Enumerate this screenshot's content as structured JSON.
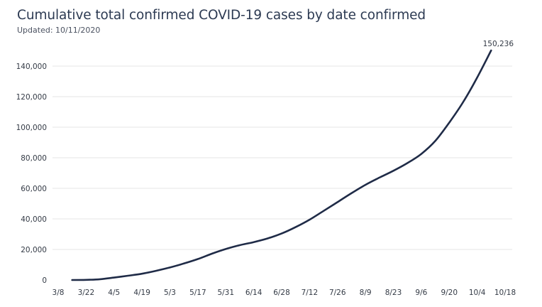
{
  "title": "Cumulative total confirmed COVID-19 cases by date confirmed",
  "subtitle": "Updated: 10/11/2020",
  "colors": {
    "line": "#1f2b47",
    "grid": "#e6e6e6",
    "text": "#333a45"
  },
  "chart_data": {
    "type": "line",
    "title": "Cumulative total confirmed COVID-19 cases by date confirmed",
    "subtitle": "Updated: 10/11/2020",
    "xlabel": "",
    "ylabel": "",
    "x_ticks": [
      {
        "label": "3/8",
        "day": 0
      },
      {
        "label": "3/22",
        "day": 14
      },
      {
        "label": "4/5",
        "day": 28
      },
      {
        "label": "4/19",
        "day": 42
      },
      {
        "label": "5/3",
        "day": 56
      },
      {
        "label": "5/17",
        "day": 70
      },
      {
        "label": "5/31",
        "day": 84
      },
      {
        "label": "6/14",
        "day": 98
      },
      {
        "label": "6/28",
        "day": 112
      },
      {
        "label": "7/12",
        "day": 126
      },
      {
        "label": "7/26",
        "day": 140
      },
      {
        "label": "8/9",
        "day": 154
      },
      {
        "label": "8/23",
        "day": 168
      },
      {
        "label": "9/6",
        "day": 182
      },
      {
        "label": "9/20",
        "day": 196
      },
      {
        "label": "10/4",
        "day": 210
      },
      {
        "label": "10/18",
        "day": 224
      }
    ],
    "y_ticks": [
      {
        "label": "0",
        "value": 0
      },
      {
        "label": "20,000",
        "value": 20000
      },
      {
        "label": "40,000",
        "value": 40000
      },
      {
        "label": "60,000",
        "value": 60000
      },
      {
        "label": "80,000",
        "value": 80000
      },
      {
        "label": "100,000",
        "value": 100000
      },
      {
        "label": "120,000",
        "value": 120000
      },
      {
        "label": "140,000",
        "value": 140000
      }
    ],
    "ylim": [
      0,
      150236
    ],
    "grid": "horizontal",
    "legend": "none",
    "end_label": "150,236",
    "series": [
      {
        "points": [
          {
            "date": "3/15/2020",
            "value": 0
          },
          {
            "date": "3/22/2020",
            "value": 100
          },
          {
            "date": "3/29/2020",
            "value": 500
          },
          {
            "date": "4/5/2020",
            "value": 1600
          },
          {
            "date": "4/12/2020",
            "value": 2800
          },
          {
            "date": "4/19/2020",
            "value": 4100
          },
          {
            "date": "4/26/2020",
            "value": 6000
          },
          {
            "date": "5/3/2020",
            "value": 8200
          },
          {
            "date": "5/10/2020",
            "value": 10800
          },
          {
            "date": "5/17/2020",
            "value": 13700
          },
          {
            "date": "5/24/2020",
            "value": 17200
          },
          {
            "date": "5/31/2020",
            "value": 20300
          },
          {
            "date": "6/7/2020",
            "value": 22800
          },
          {
            "date": "6/14/2020",
            "value": 24800
          },
          {
            "date": "6/21/2020",
            "value": 27200
          },
          {
            "date": "6/28/2020",
            "value": 30400
          },
          {
            "date": "7/5/2020",
            "value": 34600
          },
          {
            "date": "7/12/2020",
            "value": 39500
          },
          {
            "date": "7/19/2020",
            "value": 45200
          },
          {
            "date": "7/26/2020",
            "value": 51000
          },
          {
            "date": "8/2/2020",
            "value": 56800
          },
          {
            "date": "8/9/2020",
            "value": 62300
          },
          {
            "date": "8/16/2020",
            "value": 67000
          },
          {
            "date": "8/23/2020",
            "value": 71500
          },
          {
            "date": "8/30/2020",
            "value": 76500
          },
          {
            "date": "9/6/2020",
            "value": 82500
          },
          {
            "date": "9/13/2020",
            "value": 91000
          },
          {
            "date": "9/20/2020",
            "value": 103000
          },
          {
            "date": "9/27/2020",
            "value": 116500
          },
          {
            "date": "10/4/2020",
            "value": 132500
          },
          {
            "date": "10/11/2020",
            "value": 150236
          }
        ]
      }
    ]
  }
}
